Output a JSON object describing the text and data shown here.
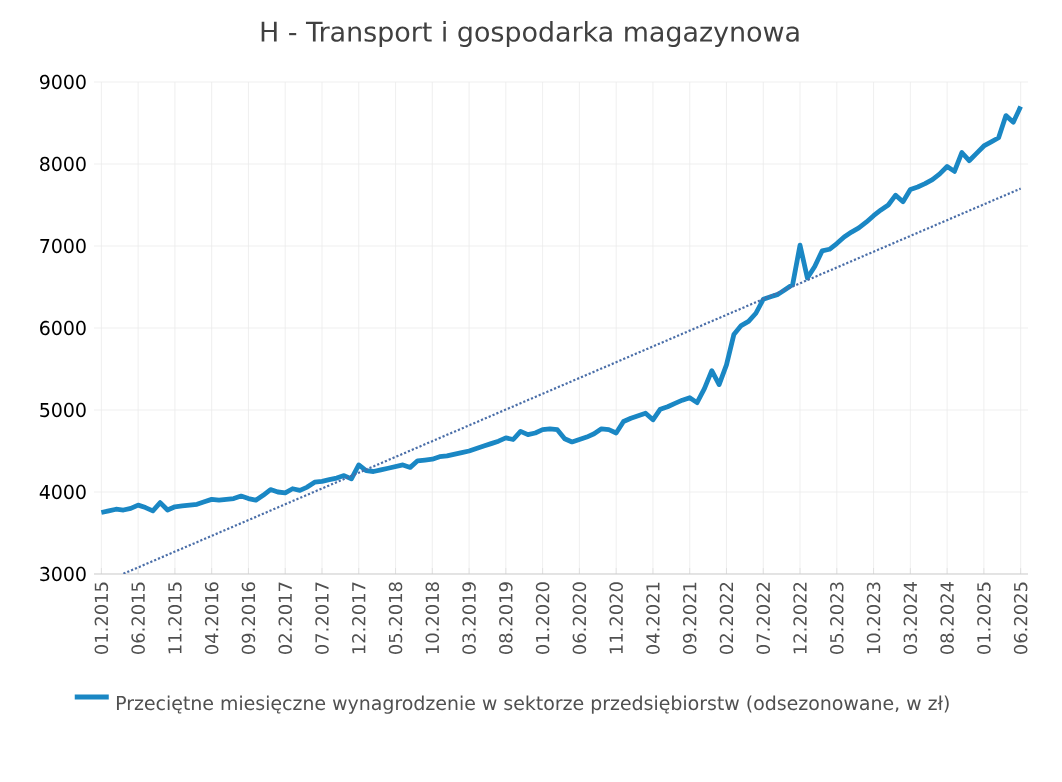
{
  "chart_data": {
    "type": "line",
    "title": "H - Transport i gospodarka magazynowa",
    "categories": [
      "01.2015",
      null,
      null,
      null,
      null,
      "06.2015",
      null,
      null,
      null,
      null,
      "11.2015",
      null,
      null,
      null,
      null,
      "04.2016",
      null,
      null,
      null,
      null,
      "09.2016",
      null,
      null,
      null,
      null,
      "02.2017",
      null,
      null,
      null,
      null,
      "07.2017",
      null,
      null,
      null,
      null,
      "12.2017",
      null,
      null,
      null,
      null,
      "05.2018",
      null,
      null,
      null,
      null,
      "10.2018",
      null,
      null,
      null,
      null,
      "03.2019",
      null,
      null,
      null,
      null,
      "08.2019",
      null,
      null,
      null,
      null,
      "01.2020",
      null,
      null,
      null,
      null,
      "06.2020",
      null,
      null,
      null,
      null,
      "11.2020",
      null,
      null,
      null,
      null,
      "04.2021",
      null,
      null,
      null,
      null,
      "09.2021",
      null,
      null,
      null,
      null,
      "02.2022",
      null,
      null,
      null,
      null,
      "07.2022",
      null,
      null,
      null,
      null,
      "12.2022",
      null,
      null,
      null,
      null,
      "05.2023",
      null,
      null,
      null,
      null,
      "10.2023",
      null,
      null,
      null,
      null,
      "03.2024",
      null,
      null,
      null,
      null,
      "08.2024",
      null,
      null,
      null,
      null,
      "01.2025",
      null,
      null,
      null,
      null,
      "06.2025"
    ],
    "series": [
      {
        "name": "Przeciętne miesięczne wynagrodzenie w sektorze przedsiębiorstw (odsezonowane,  w zł)",
        "color": "#1a87c4",
        "line_style": "solid",
        "values": [
          3750,
          3770,
          3790,
          3780,
          3800,
          3840,
          3810,
          3770,
          3870,
          3780,
          3820,
          3830,
          3840,
          3850,
          3880,
          3910,
          3900,
          3910,
          3920,
          3950,
          3920,
          3900,
          3960,
          4030,
          4000,
          3990,
          4040,
          4020,
          4060,
          4120,
          4130,
          4150,
          4170,
          4200,
          4160,
          4330,
          4260,
          4250,
          4270,
          4290,
          4310,
          4330,
          4300,
          4380,
          4390,
          4400,
          4430,
          4440,
          4460,
          4480,
          4500,
          4530,
          4560,
          4590,
          4620,
          4660,
          4640,
          4740,
          4700,
          4720,
          4760,
          4770,
          4760,
          4650,
          4610,
          4640,
          4670,
          4710,
          4770,
          4760,
          4720,
          4860,
          4900,
          4930,
          4960,
          4880,
          5010,
          5040,
          5080,
          5120,
          5150,
          5090,
          5260,
          5480,
          5310,
          5550,
          5920,
          6030,
          6080,
          6180,
          6350,
          6380,
          6410,
          6470,
          6530,
          7010,
          6610,
          6750,
          6940,
          6960,
          7030,
          7110,
          7170,
          7220,
          7290,
          7370,
          7440,
          7500,
          7620,
          7540,
          7690,
          7720,
          7760,
          7810,
          7880,
          7970,
          7910,
          8140,
          8040,
          8130,
          8220,
          8270,
          8320,
          8590,
          8510,
          8700
        ]
      },
      {
        "type": "line",
        "color": "#4a6ea8",
        "line_style": "dotted",
        "values": [
          null,
          null,
          null,
          3003,
          3042,
          3080,
          3119,
          3157,
          3196,
          3234,
          3273,
          3311,
          3350,
          3388,
          3427,
          3465,
          3504,
          3542,
          3581,
          3619,
          3658,
          3696,
          3735,
          3773,
          3812,
          3850,
          3889,
          3927,
          3966,
          4004,
          4043,
          4081,
          4120,
          4158,
          4197,
          4235,
          4274,
          4312,
          4351,
          4389,
          4428,
          4466,
          4505,
          4543,
          4582,
          4620,
          4659,
          4697,
          4736,
          4774,
          4813,
          4851,
          4890,
          4928,
          4967,
          5005,
          5044,
          5082,
          5121,
          5159,
          5198,
          5236,
          5275,
          5313,
          5352,
          5390,
          5429,
          5467,
          5506,
          5544,
          5583,
          5621,
          5660,
          5698,
          5737,
          5775,
          5814,
          5852,
          5891,
          5929,
          5968,
          6006,
          6045,
          6083,
          6122,
          6160,
          6199,
          6237,
          6276,
          6314,
          6353,
          6391,
          6430,
          6468,
          6507,
          6545,
          6584,
          6622,
          6661,
          6699,
          6738,
          6776,
          6815,
          6853,
          6892,
          6930,
          6969,
          7007,
          7046,
          7084,
          7123,
          7161,
          7200,
          7238,
          7277,
          7315,
          7354,
          7392,
          7431,
          7469,
          7508,
          7546,
          7585,
          7623,
          7662,
          7700
        ]
      }
    ],
    "ylim": [
      3000,
      9000
    ],
    "yticks": [
      3000,
      4000,
      5000,
      6000,
      7000,
      8000,
      9000
    ],
    "grid": true,
    "legend": "bottom left"
  }
}
